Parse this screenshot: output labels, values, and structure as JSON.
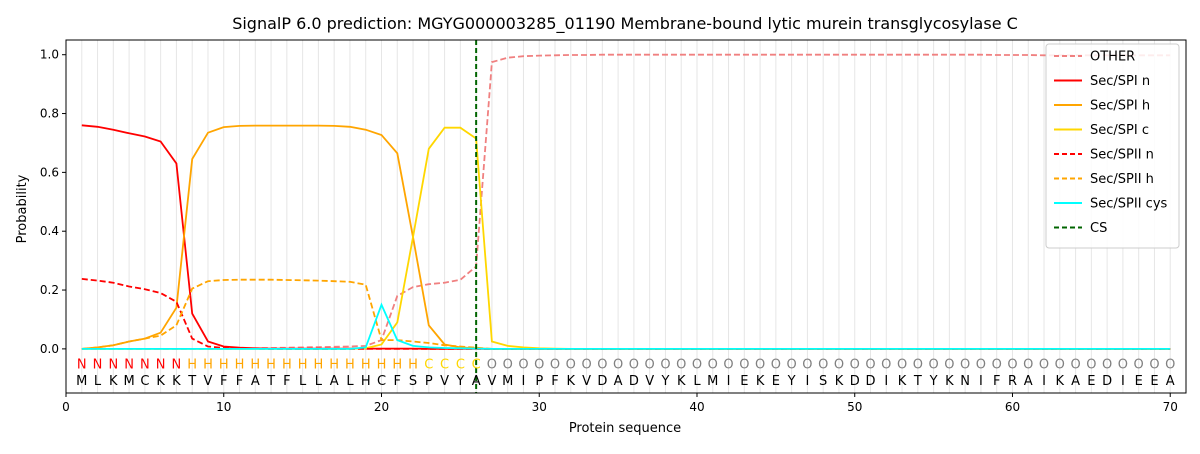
{
  "chart_data": {
    "type": "line",
    "title": "SignalP 6.0 prediction: MGYG000003285_01190 Membrane-bound lytic murein transglycosylase C",
    "xlabel": "Protein sequence",
    "ylabel": "Probability",
    "xlim": [
      0,
      71
    ],
    "ylim": [
      -0.15,
      1.05
    ],
    "xticks": [
      0,
      10,
      20,
      30,
      40,
      50,
      60,
      70
    ],
    "yticks": [
      0.0,
      0.2,
      0.4,
      0.6,
      0.8,
      1.0
    ],
    "grid": "vertical lines at each residue",
    "legend_position": "top-right",
    "cleavage_site": 26,
    "sequence": [
      "M",
      "L",
      "K",
      "M",
      "C",
      "K",
      "K",
      "T",
      "V",
      "F",
      "F",
      "A",
      "T",
      "F",
      "L",
      "L",
      "A",
      "L",
      "H",
      "C",
      "F",
      "S",
      "P",
      "V",
      "Y",
      "A",
      "V",
      "M",
      "I",
      "P",
      "F",
      "K",
      "V",
      "D",
      "A",
      "D",
      "V",
      "Y",
      "K",
      "L",
      "M",
      "I",
      "E",
      "K",
      "E",
      "Y",
      "I",
      "S",
      "K",
      "D",
      "D",
      "I",
      "K",
      "T",
      "Y",
      "K",
      "N",
      "I",
      "F",
      "R",
      "A",
      "I",
      "K",
      "A",
      "E",
      "D",
      "I",
      "E",
      "E",
      "A"
    ],
    "labels": [
      "N",
      "N",
      "N",
      "N",
      "N",
      "N",
      "N",
      "H",
      "H",
      "H",
      "H",
      "H",
      "H",
      "H",
      "H",
      "H",
      "H",
      "H",
      "H",
      "H",
      "H",
      "H",
      "C",
      "C",
      "C",
      "C",
      "O",
      "O",
      "O",
      "O",
      "O",
      "O",
      "O",
      "O",
      "O",
      "O",
      "O",
      "O",
      "O",
      "O",
      "O",
      "O",
      "O",
      "O",
      "O",
      "O",
      "O",
      "O",
      "O",
      "O",
      "O",
      "O",
      "O",
      "O",
      "O",
      "O",
      "O",
      "O",
      "O",
      "O",
      "O",
      "O",
      "O",
      "O",
      "O",
      "O",
      "O",
      "O",
      "O",
      "O"
    ],
    "label_colors": {
      "N": "#ff0000",
      "H": "#ffa500",
      "C": "#ffd700",
      "O": "#808080"
    },
    "series": [
      {
        "name": "OTHER",
        "color": "#f08080",
        "dash": "dashed",
        "values": [
          0,
          0,
          0,
          0,
          0,
          0,
          0,
          0,
          0,
          0,
          0.001,
          0.002,
          0.003,
          0.004,
          0.005,
          0.006,
          0.007,
          0.008,
          0.01,
          0.03,
          0.18,
          0.21,
          0.22,
          0.225,
          0.235,
          0.28,
          0.975,
          0.99,
          0.995,
          0.997,
          0.998,
          0.999,
          0.999,
          1.0,
          1.0,
          1.0,
          1.0,
          1.0,
          1.0,
          1.0,
          1.0,
          1.0,
          1.0,
          1.0,
          1.0,
          1.0,
          1.0,
          1.0,
          1.0,
          1.0,
          1.0,
          1.0,
          1.0,
          1.0,
          1.0,
          1.0,
          1.0,
          1.0,
          0.999,
          0.999,
          0.999,
          0.998,
          0.998,
          0.998,
          0.998,
          0.998,
          0.998,
          0.998,
          0.998,
          0.998
        ]
      },
      {
        "name": "Sec/SPI n",
        "color": "#ff0000",
        "dash": "solid",
        "values": [
          0.76,
          0.755,
          0.745,
          0.733,
          0.722,
          0.705,
          0.63,
          0.12,
          0.025,
          0.008,
          0.004,
          0.002,
          0.001,
          0.001,
          0.001,
          0.001,
          0.001,
          0.001,
          0.001,
          0.001,
          0.001,
          0.001,
          0,
          0,
          0,
          0,
          0,
          0,
          0,
          0,
          0,
          0,
          0,
          0,
          0,
          0,
          0,
          0,
          0,
          0,
          0,
          0,
          0,
          0,
          0,
          0,
          0,
          0,
          0,
          0,
          0,
          0,
          0,
          0,
          0,
          0,
          0,
          0,
          0,
          0,
          0,
          0,
          0,
          0,
          0,
          0,
          0,
          0,
          0,
          0
        ]
      },
      {
        "name": "Sec/SPI h",
        "color": "#ffa500",
        "dash": "solid",
        "values": [
          0.0,
          0.005,
          0.012,
          0.025,
          0.035,
          0.055,
          0.14,
          0.645,
          0.735,
          0.754,
          0.758,
          0.759,
          0.759,
          0.759,
          0.759,
          0.759,
          0.758,
          0.755,
          0.745,
          0.727,
          0.665,
          0.38,
          0.08,
          0.015,
          0.005,
          0.002,
          0,
          0,
          0,
          0,
          0,
          0,
          0,
          0,
          0,
          0,
          0,
          0,
          0,
          0,
          0,
          0,
          0,
          0,
          0,
          0,
          0,
          0,
          0,
          0,
          0,
          0,
          0,
          0,
          0,
          0,
          0,
          0,
          0,
          0,
          0,
          0,
          0,
          0,
          0,
          0,
          0,
          0,
          0,
          0
        ]
      },
      {
        "name": "Sec/SPI c",
        "color": "#ffd700",
        "dash": "solid",
        "values": [
          0,
          0,
          0,
          0,
          0,
          0,
          0,
          0,
          0,
          0,
          0,
          0,
          0,
          0,
          0,
          0,
          0,
          0,
          0.002,
          0.015,
          0.09,
          0.38,
          0.68,
          0.752,
          0.752,
          0.715,
          0.025,
          0.01,
          0.005,
          0.002,
          0.001,
          0,
          0,
          0,
          0,
          0,
          0,
          0,
          0,
          0,
          0,
          0,
          0,
          0,
          0,
          0,
          0,
          0,
          0,
          0,
          0,
          0,
          0,
          0,
          0,
          0,
          0,
          0,
          0,
          0,
          0,
          0,
          0,
          0,
          0,
          0,
          0,
          0,
          0,
          0
        ]
      },
      {
        "name": "Sec/SPII n",
        "color": "#ff0000",
        "dash": "dashed",
        "values": [
          0.238,
          0.232,
          0.225,
          0.212,
          0.203,
          0.19,
          0.16,
          0.035,
          0.008,
          0.003,
          0.001,
          0.001,
          0,
          0,
          0,
          0,
          0,
          0,
          0,
          0,
          0,
          0,
          0,
          0,
          0,
          0,
          0,
          0,
          0,
          0,
          0,
          0,
          0,
          0,
          0,
          0,
          0,
          0,
          0,
          0,
          0,
          0,
          0,
          0,
          0,
          0,
          0,
          0,
          0,
          0,
          0,
          0,
          0,
          0,
          0,
          0,
          0,
          0,
          0,
          0,
          0,
          0,
          0,
          0,
          0,
          0,
          0,
          0,
          0,
          0
        ]
      },
      {
        "name": "Sec/SPII h",
        "color": "#ffa500",
        "dash": "dashed",
        "values": [
          0.0,
          0.005,
          0.012,
          0.025,
          0.035,
          0.045,
          0.08,
          0.205,
          0.23,
          0.234,
          0.235,
          0.235,
          0.235,
          0.234,
          0.233,
          0.232,
          0.23,
          0.228,
          0.218,
          0.03,
          0.03,
          0.025,
          0.02,
          0.012,
          0.008,
          0.004,
          0,
          0,
          0,
          0,
          0,
          0,
          0,
          0,
          0,
          0,
          0,
          0,
          0,
          0,
          0,
          0,
          0,
          0,
          0,
          0,
          0,
          0,
          0,
          0,
          0,
          0,
          0,
          0,
          0,
          0,
          0,
          0,
          0,
          0,
          0,
          0,
          0,
          0,
          0,
          0,
          0,
          0,
          0,
          0
        ]
      },
      {
        "name": "Sec/SPII cys",
        "color": "#00ffff",
        "dash": "solid",
        "values": [
          0,
          0,
          0,
          0,
          0,
          0,
          0,
          0,
          0,
          0,
          0,
          0,
          0,
          0,
          0,
          0,
          0,
          0,
          0.005,
          0.15,
          0.03,
          0.01,
          0.005,
          0.003,
          0.002,
          0.001,
          0,
          0,
          0,
          0,
          0,
          0,
          0,
          0,
          0,
          0,
          0,
          0,
          0,
          0,
          0,
          0,
          0,
          0,
          0,
          0,
          0,
          0,
          0,
          0,
          0,
          0,
          0,
          0,
          0,
          0,
          0,
          0,
          0,
          0,
          0,
          0,
          0,
          0,
          0,
          0,
          0,
          0,
          0,
          0
        ]
      },
      {
        "name": "CS",
        "color": "#006400",
        "dash": "dashed",
        "vertical_at": 26
      }
    ]
  }
}
